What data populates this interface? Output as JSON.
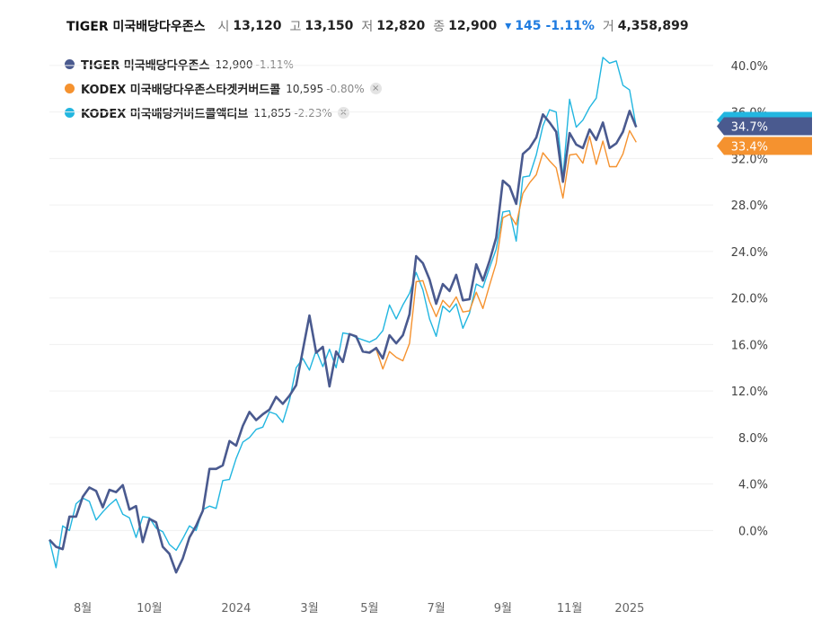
{
  "quote": {
    "name": "TIGER 미국배당다우존스",
    "open_label": "시",
    "open": "13,120",
    "high_label": "고",
    "high": "13,150",
    "low_label": "저",
    "low": "12,820",
    "close_label": "종",
    "close": "12,900",
    "change_arrow": "▾",
    "change": "145",
    "change_pct": "-1.11%",
    "volume_label": "거",
    "volume": "4,358,899",
    "change_color": "#1e7be0"
  },
  "legend": [
    {
      "name": "TIGER 미국배당다우존스",
      "value": "12,900",
      "change": "-1.11%",
      "color": "#4a5a8f",
      "close_icon": ""
    },
    {
      "name": "KODEX 미국배당다우존스타겟커버드콜",
      "value": "10,595",
      "change": "-0.80%",
      "color": "#f5922f",
      "close_icon": "×"
    },
    {
      "name": "KODEX 미국배당커버드콜액티브",
      "value": "11,855",
      "change": "-2.23%",
      "color": "#22b6e0",
      "close_icon": "×"
    }
  ],
  "chart_data": {
    "type": "line",
    "ylabel_format": "percent",
    "ylim": [
      -6,
      41
    ],
    "y_ticks": [
      "0.0%",
      "4.0%",
      "8.0%",
      "12.0%",
      "16.0%",
      "20.0%",
      "24.0%",
      "28.0%",
      "32.0%",
      "36.0%",
      "40.0%"
    ],
    "x_ticks": [
      {
        "label": "8월",
        "i": 5
      },
      {
        "label": "10월",
        "i": 15
      },
      {
        "label": "2024",
        "i": 28
      },
      {
        "label": "3월",
        "i": 39
      },
      {
        "label": "5월",
        "i": 48
      },
      {
        "label": "7월",
        "i": 58
      },
      {
        "label": "9월",
        "i": 68
      },
      {
        "label": "11월",
        "i": 78
      },
      {
        "label": "2025",
        "i": 87
      }
    ],
    "n_points": 100,
    "series": [
      {
        "name": "TIGER 미국배당다우존스",
        "color": "#4a5a8f",
        "last_label": "34.7%",
        "start_index": 0,
        "values": [
          -0.8,
          -1.4,
          -1.6,
          1.2,
          1.2,
          2.9,
          3.7,
          3.4,
          2.0,
          3.5,
          3.3,
          3.9,
          1.8,
          2.1,
          -1.0,
          1.0,
          0.7,
          -1.4,
          -2.0,
          -3.6,
          -2.4,
          -0.6,
          0.4,
          1.7,
          5.3,
          5.3,
          5.6,
          7.7,
          7.3,
          9.0,
          10.2,
          9.5,
          10.0,
          10.4,
          11.5,
          10.9,
          11.6,
          12.5,
          15.5,
          18.5,
          15.3,
          15.8,
          12.4,
          15.4,
          14.5,
          16.9,
          16.7,
          15.4,
          15.3,
          15.7,
          14.8,
          16.8,
          16.1,
          16.8,
          18.6,
          23.6,
          23.0,
          21.6,
          19.5,
          21.2,
          20.6,
          22.0,
          19.8,
          19.9,
          22.9,
          21.5,
          23.2,
          25.2,
          30.1,
          29.6,
          28.1,
          32.4,
          32.9,
          33.8,
          35.8,
          35.1,
          34.3,
          30.0,
          34.2,
          33.2,
          32.9,
          34.5,
          33.6,
          35.1,
          32.9,
          33.3,
          34.3,
          36.1,
          34.7
        ]
      },
      {
        "name": "KODEX 미국배당다우존스타겟커버드콜",
        "color": "#f5922f",
        "last_label": "33.4%",
        "start_index": 48,
        "values": [
          15.4,
          15.6,
          13.9,
          15.4,
          14.9,
          14.6,
          16.1,
          21.4,
          21.5,
          19.7,
          18.4,
          19.8,
          19.2,
          20.1,
          18.8,
          18.9,
          20.5,
          19.1,
          21.1,
          23.0,
          26.9,
          27.2,
          26.3,
          29.0,
          29.9,
          30.6,
          32.5,
          31.8,
          31.2,
          28.6,
          32.3,
          32.4,
          31.6,
          33.9,
          31.5,
          33.5,
          31.3,
          31.3,
          32.4,
          34.4,
          33.4
        ]
      },
      {
        "name": "KODEX 미국배당커버드콜액티브",
        "color": "#22b6e0",
        "last_label": "34.7%",
        "start_index": 0,
        "values": [
          -0.8,
          -3.2,
          0.4,
          0.0,
          2.3,
          2.8,
          2.5,
          0.9,
          1.6,
          2.2,
          2.7,
          1.4,
          1.1,
          -0.6,
          1.2,
          1.1,
          0.2,
          -0.1,
          -1.2,
          -1.7,
          -0.7,
          0.4,
          0.0,
          1.8,
          2.1,
          1.9,
          4.3,
          4.4,
          6.2,
          7.6,
          8.0,
          8.7,
          8.9,
          10.2,
          10.0,
          9.3,
          11.2,
          14.0,
          14.8,
          13.8,
          15.5,
          14.1,
          15.6,
          14.0,
          17.0,
          16.9,
          16.6,
          16.4,
          16.2,
          16.5,
          17.2,
          19.4,
          18.2,
          19.4,
          20.4,
          22.2,
          20.7,
          18.2,
          16.7,
          19.3,
          18.8,
          19.5,
          17.4,
          18.7,
          21.2,
          20.9,
          22.6,
          24.2,
          27.4,
          27.5,
          24.9,
          30.4,
          30.5,
          32.3,
          34.8,
          36.2,
          36.0,
          30.4,
          37.1,
          34.7,
          35.3,
          36.4,
          37.2,
          40.7,
          40.2,
          40.4,
          38.3,
          37.9,
          34.7
        ]
      }
    ]
  }
}
